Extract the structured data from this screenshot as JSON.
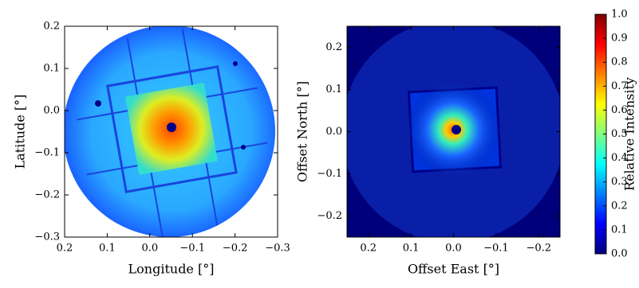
{
  "chart_data": [
    {
      "type": "image",
      "xlabel": "Longitude [°]",
      "ylabel": "Latitude [°]",
      "xlim": [
        0.2,
        -0.3
      ],
      "ylim": [
        -0.3,
        0.2
      ],
      "xticks": [
        {
          "value": 0.2,
          "label": "0.2"
        },
        {
          "value": 0.1,
          "label": "0.1"
        },
        {
          "value": 0,
          "label": "0.0"
        },
        {
          "value": -0.1,
          "label": "−0.1"
        },
        {
          "value": -0.2,
          "label": "−0.2"
        },
        {
          "value": -0.3,
          "label": "−0.3"
        }
      ],
      "yticks": [
        {
          "value": 0.2,
          "label": "0.2"
        },
        {
          "value": 0.1,
          "label": "0.1"
        },
        {
          "value": 0,
          "label": "0.0"
        },
        {
          "value": -0.1,
          "label": "−0.1"
        },
        {
          "value": -0.2,
          "label": "−0.2"
        },
        {
          "value": -0.3,
          "label": "−0.3"
        }
      ]
    },
    {
      "type": "image",
      "xlabel": "Offset East [°]",
      "ylabel": "Offset North [°]",
      "xlim": [
        0.25,
        -0.25
      ],
      "ylim": [
        -0.25,
        0.25
      ],
      "xticks": [
        {
          "value": 0.2,
          "label": "0.2"
        },
        {
          "value": 0.1,
          "label": "0.1"
        },
        {
          "value": 0,
          "label": "0.0"
        },
        {
          "value": -0.1,
          "label": "−0.1"
        },
        {
          "value": -0.2,
          "label": "−0.2"
        }
      ],
      "yticks": [
        {
          "value": 0.2,
          "label": "0.2"
        },
        {
          "value": 0.1,
          "label": "0.1"
        },
        {
          "value": 0,
          "label": "0.0"
        },
        {
          "value": -0.1,
          "label": "−0.1"
        },
        {
          "value": -0.2,
          "label": "−0.2"
        }
      ]
    },
    {
      "type": "colorbar",
      "ylabel": "Relative Intensity",
      "colormap": "jet",
      "ylim": [
        0,
        1
      ],
      "yticks": [
        {
          "value": 0,
          "label": "0.0"
        },
        {
          "value": 0.1,
          "label": "0.1"
        },
        {
          "value": 0.2,
          "label": "0.2"
        },
        {
          "value": 0.3,
          "label": "0.3"
        },
        {
          "value": 0.4,
          "label": "0.4"
        },
        {
          "value": 0.5,
          "label": "0.5"
        },
        {
          "value": 0.6,
          "label": "0.6"
        },
        {
          "value": 0.7,
          "label": "0.7"
        },
        {
          "value": 0.8,
          "label": "0.8"
        },
        {
          "value": 0.9,
          "label": "0.9"
        },
        {
          "value": 1,
          "label": "1.0"
        }
      ]
    }
  ]
}
